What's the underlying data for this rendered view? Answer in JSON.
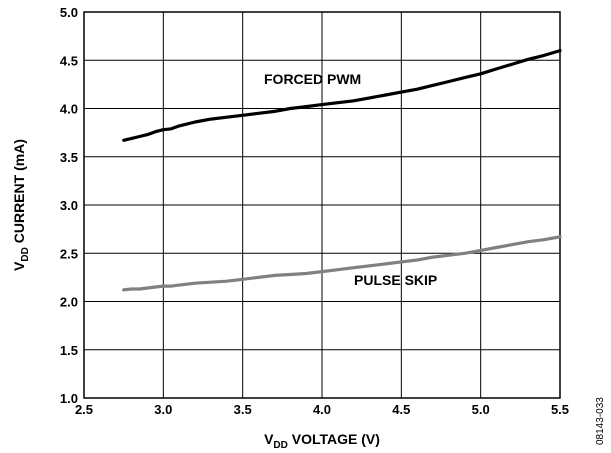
{
  "chart_data": {
    "type": "line",
    "xlabel": {
      "main": "V",
      "sub": "DD",
      "rest": " VOLTAGE (V)"
    },
    "ylabel": {
      "main": "V",
      "sub": "DD",
      "rest": " CURRENT (mA)"
    },
    "xlim": [
      2.5,
      5.5
    ],
    "ylim": [
      1.0,
      5.0
    ],
    "xticks": [
      "2.5",
      "3.0",
      "3.5",
      "4.0",
      "4.5",
      "5.0",
      "5.5"
    ],
    "yticks": [
      "1.0",
      "1.5",
      "2.0",
      "2.5",
      "3.0",
      "3.5",
      "4.0",
      "4.5",
      "5.0"
    ],
    "grid": true,
    "series": [
      {
        "name": "FORCED PWM",
        "color": "#000000",
        "x": [
          2.75,
          2.8,
          2.85,
          2.9,
          2.95,
          3.0,
          3.05,
          3.1,
          3.2,
          3.3,
          3.4,
          3.5,
          3.6,
          3.7,
          3.8,
          3.9,
          4.0,
          4.1,
          4.2,
          4.3,
          4.4,
          4.5,
          4.6,
          4.7,
          4.8,
          4.9,
          5.0,
          5.1,
          5.2,
          5.3,
          5.4,
          5.5
        ],
        "y": [
          3.67,
          3.69,
          3.71,
          3.73,
          3.76,
          3.78,
          3.79,
          3.82,
          3.86,
          3.89,
          3.91,
          3.93,
          3.95,
          3.97,
          4.0,
          4.02,
          4.04,
          4.06,
          4.08,
          4.11,
          4.14,
          4.17,
          4.2,
          4.24,
          4.28,
          4.32,
          4.36,
          4.41,
          4.46,
          4.51,
          4.55,
          4.6
        ]
      },
      {
        "name": "PULSE SKIP",
        "color": "#808080",
        "x": [
          2.75,
          2.8,
          2.85,
          2.9,
          2.95,
          3.0,
          3.05,
          3.1,
          3.2,
          3.3,
          3.4,
          3.5,
          3.6,
          3.7,
          3.8,
          3.9,
          4.0,
          4.1,
          4.2,
          4.3,
          4.4,
          4.5,
          4.6,
          4.7,
          4.8,
          4.9,
          5.0,
          5.1,
          5.2,
          5.3,
          5.4,
          5.5
        ],
        "y": [
          2.12,
          2.13,
          2.13,
          2.14,
          2.15,
          2.16,
          2.16,
          2.17,
          2.19,
          2.2,
          2.21,
          2.23,
          2.25,
          2.27,
          2.28,
          2.29,
          2.31,
          2.33,
          2.35,
          2.37,
          2.39,
          2.41,
          2.43,
          2.46,
          2.48,
          2.5,
          2.53,
          2.56,
          2.59,
          2.62,
          2.64,
          2.67
        ]
      }
    ],
    "annotations": [
      "FORCED PWM",
      "PULSE SKIP"
    ],
    "figure_id": "08143-033"
  }
}
